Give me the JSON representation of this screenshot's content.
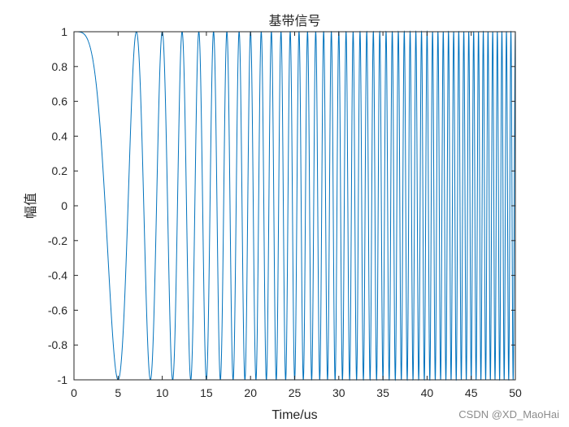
{
  "chart_data": {
    "type": "line",
    "title": "基带信号",
    "xlabel": "Time/us",
    "ylabel": "幅值",
    "xlim": [
      0,
      50
    ],
    "ylim": [
      -1,
      1
    ],
    "xticks": [
      "0",
      "5",
      "10",
      "15",
      "20",
      "25",
      "30",
      "35",
      "40",
      "45",
      "50"
    ],
    "yticks": [
      "1",
      "0.8",
      "0.6",
      "0.4",
      "0.2",
      "0",
      "-0.2",
      "-0.4",
      "-0.6",
      "-0.8",
      "-1"
    ],
    "grid": false,
    "series": [
      {
        "function": "cos(pi * k * t^2)",
        "k": 0.04,
        "t_start": 0,
        "t_end": 50,
        "color": "#0072BD"
      }
    ],
    "axis_color": "#262626"
  },
  "watermark": "CSDN @XD_MaoHai"
}
